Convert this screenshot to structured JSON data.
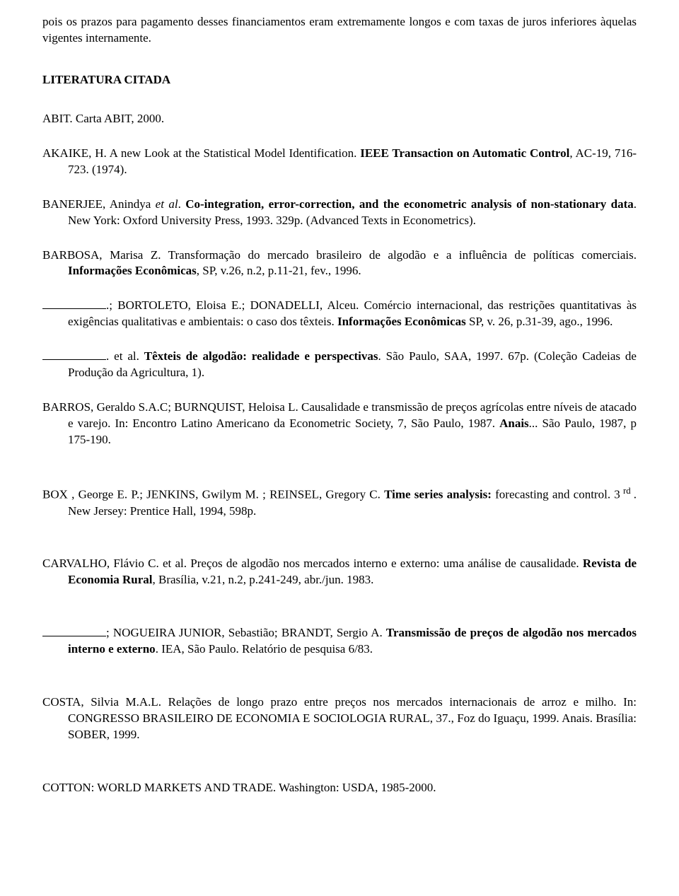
{
  "intro": {
    "text": "pois os prazos para pagamento desses financiamentos eram extremamente longos e com taxas de juros inferiores àquelas vigentes internamente."
  },
  "heading": {
    "text": "LITERATURA CITADA"
  },
  "refs": {
    "r1": {
      "full": "ABIT.  Carta ABIT,  2000."
    },
    "r2": {
      "pre": "AKAIKE, H.   A new Look at the Statistical Model Identification.   ",
      "bold": "IEEE Transaction on Automatic Control",
      "post": ", AC-19, 716-723. (1974)."
    },
    "r3": {
      "pre": "BANERJEE, Anindya ",
      "ital1": "et al",
      "mid": ".   ",
      "bold": "Co-integration, error-correction, and the econometric analysis of non-stationary data",
      "post": ".    New York: Oxford University Press, 1993.  329p.  (Advanced Texts in Econometrics)."
    },
    "r4": {
      "pre": "BARBOSA, Marisa Z.   Transformação do mercado brasileiro de algodão e a      influência de políticas comerciais.  ",
      "bold": "Informações Econômicas",
      "post": ", SP, v.26, n.2, p.11-21, fev., 1996."
    },
    "r5": {
      "pre": ".; BORTOLETO, Eloisa E.; DONADELLI, Alceu.   Comércio internacional, das restrições quantitativas às exigências qualitativas e ambientais: o caso dos têxteis.  ",
      "bold": "Informações Econômicas",
      "post": " SP, v. 26, p.31-39, ago., 1996."
    },
    "r6": {
      "pre": ". et al. ",
      "bold": "Têxteis de algodão: realidade e perspectivas",
      "post": ". São Paulo, SAA, 1997. 67p. (Coleção Cadeias de Produção da Agricultura, 1)."
    },
    "r7": {
      "pre": "BARROS, Geraldo S.A.C; BURNQUIST, Heloisa L.     Causalidade e transmissão de preços agrícolas entre níveis de atacado e varejo.  In: Encontro Latino Americano da Econometric Society, 7, São Paulo, 1987. ",
      "bold": "Anais",
      "post": "... São Paulo, 1987, p 175-190."
    },
    "r8": {
      "pre": "BOX , George E. P.; JENKINS, Gwilym M. ; REINSEL, Gregory C. ",
      "bold": "Time series analysis:",
      "post1": " forecasting and control. 3",
      "sup": " rd ",
      "post2": ". New Jersey: Prentice Hall, 1994, 598p."
    },
    "r9": {
      "pre": "CARVALHO, Flávio C. et al. Preços de algodão nos mercados interno e externo: uma análise de causalidade. ",
      "bold": "Revista de Economia Rural",
      "post": ", Brasília, v.21, n.2, p.241-249, abr./jun. 1983."
    },
    "r10": {
      "pre": "; NOGUEIRA JUNIOR, Sebastião; BRANDT, Sergio A. ",
      "bold": "Transmissão de preços de algodão nos mercados interno e externo",
      "post": ". IEA, São Paulo. Relatório de pesquisa 6/83."
    },
    "r11": {
      "pre": "COSTA, Silvia M.A.L.  Relações de longo prazo entre preços nos mercados internacionais de arroz e milho. In: CONGRESSO BRASILEIRO DE ECONOMIA E SOCIOLOGIA RURAL, 37., Foz do Iguaçu, 1999. Anais. Brasília: SOBER, 1999."
    },
    "r12": {
      "pre": "COTTON: WORLD MARKETS AND TRADE.    Washington: USDA, 1985-2000."
    }
  }
}
